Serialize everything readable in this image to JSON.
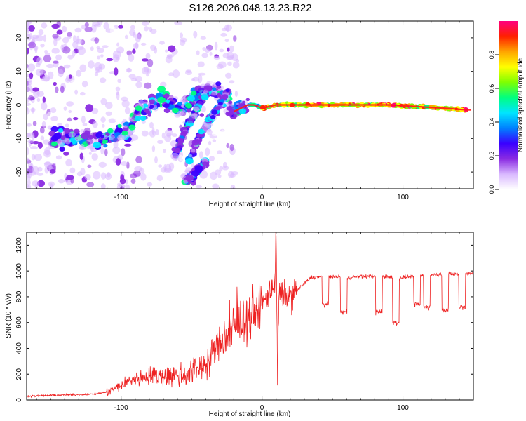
{
  "title": "S126.2026.048.13.23.R22",
  "chart_data": [
    {
      "type": "heatmap",
      "name": "spectrogram",
      "xlabel": "Height of straight line (km)",
      "ylabel": "Frequency (Hz)",
      "xlim": [
        -167,
        150
      ],
      "ylim": [
        -25,
        25
      ],
      "xticks": [
        -100,
        0,
        100
      ],
      "yticks": [
        -20,
        -10,
        0,
        10,
        20
      ],
      "colorbar": {
        "label": "Normalized spectral amplitude",
        "range": [
          0,
          1
        ],
        "ticks": [
          "0.0",
          "0.2",
          "0.4",
          "0.6",
          "0.8"
        ],
        "stops": [
          "#ffffff",
          "#d9b8ff",
          "#8a2be2",
          "#3a00ff",
          "#0080ff",
          "#00e5ff",
          "#00ff80",
          "#7fff00",
          "#ffff00",
          "#ffa500",
          "#ff2000",
          "#ff0080"
        ]
      },
      "traces": [
        {
          "label": "main echo trace",
          "x": [
            -150,
            -130,
            -115,
            -105,
            -95,
            -88,
            -80,
            -72,
            -60,
            -45,
            -33,
            -25,
            -20,
            -15,
            -10,
            -5,
            0,
            10,
            30,
            50,
            70,
            90,
            110,
            130,
            145
          ],
          "y": [
            -10,
            -10,
            -10,
            -9,
            -8,
            -2,
            -1,
            3,
            -2,
            3,
            5,
            0,
            -2,
            -1,
            0,
            0,
            -1,
            0,
            0,
            0,
            0,
            0,
            -0.5,
            -1,
            -1.5
          ]
        },
        {
          "label": "secondary streak A",
          "x": [
            -62,
            -55,
            -47,
            -38
          ],
          "y": [
            -16,
            -8,
            -2,
            5
          ]
        },
        {
          "label": "secondary streak B",
          "x": [
            -52,
            -45,
            -38,
            -30,
            -24
          ],
          "y": [
            -17,
            -10,
            -5,
            0,
            4
          ]
        },
        {
          "label": "secondary streak C",
          "x": [
            -55,
            -47,
            -40
          ],
          "y": [
            -23,
            -20,
            -17
          ]
        }
      ]
    },
    {
      "type": "line",
      "name": "snr",
      "xlabel": "Height of straight line (km)",
      "ylabel": "SNR (10 * v/v)",
      "xlim": [
        -167,
        150
      ],
      "ylim": [
        0,
        1300
      ],
      "xticks": [
        -100,
        0,
        100
      ],
      "yticks": [
        0,
        200,
        400,
        600,
        800,
        1000,
        1200
      ],
      "color": "#ee2222",
      "series": [
        {
          "name": "SNR",
          "x": [
            -167,
            -150,
            -135,
            -120,
            -110,
            -100,
            -92,
            -85,
            -78,
            -72,
            -65,
            -55,
            -45,
            -38,
            -32,
            -25,
            -20,
            -15,
            -10,
            -6,
            -3,
            0,
            3,
            6,
            9,
            10,
            11,
            12,
            15,
            20,
            25,
            30,
            35,
            45,
            60,
            80,
            100,
            120,
            150
          ],
          "y": [
            30,
            35,
            40,
            45,
            60,
            110,
            160,
            175,
            190,
            185,
            190,
            195,
            250,
            310,
            420,
            470,
            560,
            600,
            620,
            640,
            700,
            740,
            790,
            860,
            900,
            1300,
            150,
            800,
            820,
            800,
            850,
            900,
            950,
            960,
            950,
            960,
            950,
            970,
            980
          ]
        },
        {
          "name": "dips",
          "x": [
            45,
            58,
            83,
            95,
            110,
            117,
            130,
            142
          ],
          "y": [
            700,
            640,
            640,
            560,
            700,
            680,
            660,
            680
          ]
        }
      ]
    }
  ]
}
